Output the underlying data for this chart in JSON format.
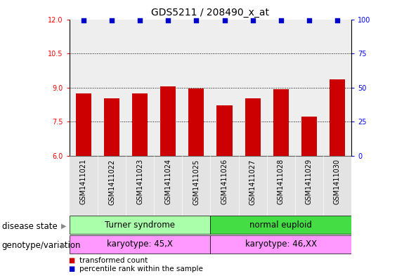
{
  "title": "GDS5211 / 208490_x_at",
  "samples": [
    "GSM1411021",
    "GSM1411022",
    "GSM1411023",
    "GSM1411024",
    "GSM1411025",
    "GSM1411026",
    "GSM1411027",
    "GSM1411028",
    "GSM1411029",
    "GSM1411030"
  ],
  "transformed_counts": [
    8.75,
    8.52,
    8.75,
    9.07,
    8.95,
    8.22,
    8.52,
    8.92,
    7.72,
    9.35
  ],
  "percentile_ranks": [
    99,
    99,
    99,
    99,
    99,
    99,
    99,
    99,
    99,
    99
  ],
  "bar_color": "#cc0000",
  "dot_color": "#0000cc",
  "ylim_left": [
    6,
    12
  ],
  "ylim_right": [
    0,
    100
  ],
  "yticks_left": [
    6,
    7.5,
    9,
    10.5,
    12
  ],
  "yticks_right": [
    0,
    25,
    50,
    75,
    100
  ],
  "disease_state_groups": [
    {
      "label": "Turner syndrome",
      "start": 0,
      "end": 5,
      "color": "#aaffaa"
    },
    {
      "label": "normal euploid",
      "start": 5,
      "end": 10,
      "color": "#44dd44"
    }
  ],
  "genotype_groups": [
    {
      "label": "karyotype: 45,X",
      "start": 0,
      "end": 5,
      "color": "#ff99ff"
    },
    {
      "label": "karyotype: 46,XX",
      "start": 5,
      "end": 10,
      "color": "#ff99ff"
    }
  ],
  "row_labels": [
    "disease state",
    "genotype/variation"
  ],
  "legend_items": [
    {
      "label": "transformed count",
      "color": "#cc0000"
    },
    {
      "label": "percentile rank within the sample",
      "color": "#0000cc"
    }
  ],
  "bar_width": 0.55,
  "title_fontsize": 10,
  "tick_fontsize": 7,
  "label_fontsize": 8.5,
  "annotation_fontsize": 8.5
}
